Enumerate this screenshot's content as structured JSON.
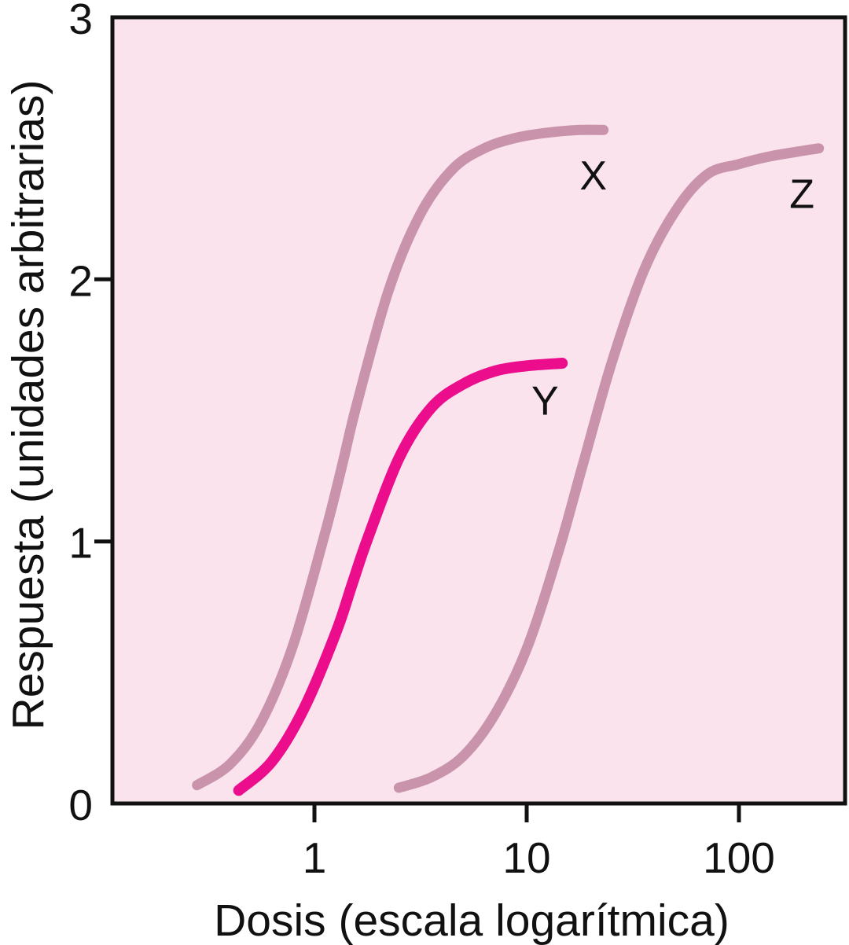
{
  "figure": {
    "background": "#ffffff"
  },
  "chart_data": {
    "type": "line",
    "title": "",
    "xlabel": "Dosis (escala logarítmica)",
    "ylabel": "Respuesta (unidades arbitrarias)",
    "x_scale": "log",
    "x_ticks": [
      1,
      10,
      100
    ],
    "y_ticks": [
      0,
      1,
      2,
      3
    ],
    "y_ticks_with_marks": [
      1,
      2
    ],
    "ylim": [
      0,
      3
    ],
    "xlim_approx": [
      0.11,
      316
    ],
    "grid": "off",
    "legend": "inline-curve-labels",
    "plot_bg": "#fae3ed",
    "frame_color": "#111111",
    "text_color": "#111111",
    "series": [
      {
        "name": "X",
        "label": "X",
        "color": "#c994ab",
        "max_response": 2.57,
        "ec50_approx": 1.35,
        "label_pos": {
          "dose": 20.6,
          "response": 2.4
        },
        "points": [
          [
            0.28,
            0.07
          ],
          [
            0.4,
            0.15
          ],
          [
            0.56,
            0.31
          ],
          [
            0.79,
            0.6
          ],
          [
            1.12,
            1.03
          ],
          [
            1.35,
            1.29
          ],
          [
            1.58,
            1.52
          ],
          [
            2.24,
            1.96
          ],
          [
            3.16,
            2.25
          ],
          [
            4.47,
            2.42
          ],
          [
            6.31,
            2.5
          ],
          [
            8.91,
            2.54
          ],
          [
            12.6,
            2.56
          ],
          [
            17.8,
            2.57
          ],
          [
            23.0,
            2.57
          ]
        ]
      },
      {
        "name": "Y",
        "label": "Y",
        "color": "#ec0d8c",
        "max_response": 1.68,
        "ec50_approx": 1.6,
        "label_pos": {
          "dose": 12.2,
          "response": 1.54
        },
        "points": [
          [
            0.44,
            0.05
          ],
          [
            0.63,
            0.16
          ],
          [
            0.89,
            0.36
          ],
          [
            1.26,
            0.65
          ],
          [
            1.51,
            0.84
          ],
          [
            1.78,
            1.01
          ],
          [
            2.51,
            1.32
          ],
          [
            3.55,
            1.51
          ],
          [
            5.01,
            1.6
          ],
          [
            7.08,
            1.65
          ],
          [
            10.0,
            1.67
          ],
          [
            14.7,
            1.68
          ]
        ]
      },
      {
        "name": "Z",
        "label": "Z",
        "color": "#c994ab",
        "max_response": 2.5,
        "ec50_approx": 18,
        "label_pos": {
          "dose": 198,
          "response": 2.33
        },
        "points": [
          [
            2.5,
            0.06
          ],
          [
            3.55,
            0.1
          ],
          [
            5.01,
            0.18
          ],
          [
            7.08,
            0.34
          ],
          [
            10.0,
            0.59
          ],
          [
            14.1,
            0.96
          ],
          [
            18.2,
            1.28
          ],
          [
            25.1,
            1.68
          ],
          [
            35.5,
            2.03
          ],
          [
            50.1,
            2.26
          ],
          [
            70.8,
            2.4
          ],
          [
            100,
            2.44
          ],
          [
            141,
            2.47
          ],
          [
            238,
            2.5
          ]
        ]
      }
    ]
  }
}
